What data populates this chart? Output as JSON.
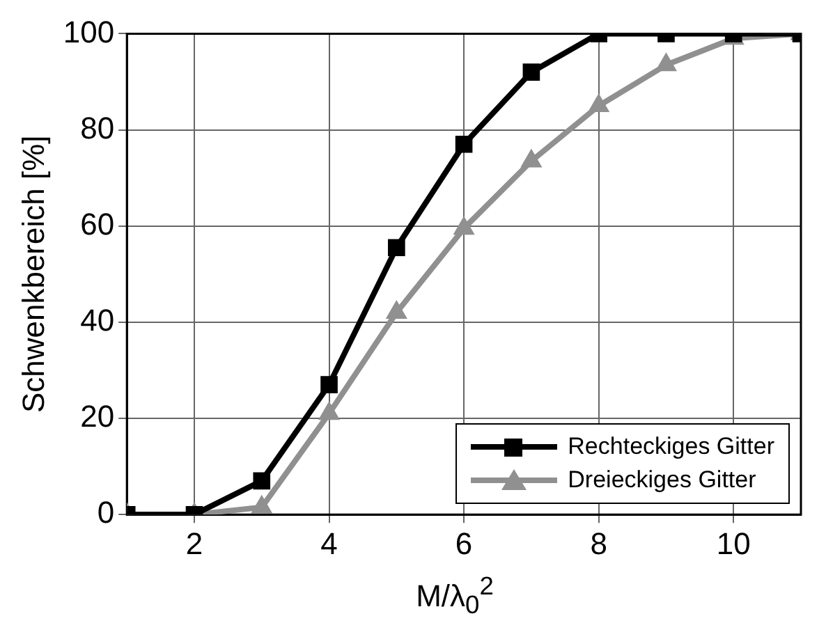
{
  "chart_data": {
    "type": "line",
    "xlabel": "M/λ$_{0}$$^{2}$",
    "ylabel": "Schwenkbereich [%]",
    "x": [
      1,
      2,
      3,
      4,
      5,
      6,
      7,
      8,
      9,
      10,
      11
    ],
    "series": [
      {
        "name": "Rechteckiges Gitter",
        "color": "#000000",
        "marker": "square",
        "values": [
          0,
          0,
          7,
          27,
          55.5,
          77,
          92,
          100,
          100,
          100,
          100
        ]
      },
      {
        "name": "Dreieckiges Gitter",
        "color": "#909090",
        "marker": "triangle",
        "values": [
          0,
          0,
          1.5,
          21,
          42,
          59.5,
          73.5,
          85,
          93.5,
          99,
          100
        ]
      }
    ],
    "xlim": [
      1,
      11
    ],
    "xticks": [
      2,
      4,
      6,
      8,
      10
    ],
    "ylim": [
      0,
      100
    ],
    "yticks": [
      0,
      20,
      40,
      60,
      80,
      100
    ],
    "grid": true,
    "legend": "bottom right",
    "line_style": "solid"
  }
}
